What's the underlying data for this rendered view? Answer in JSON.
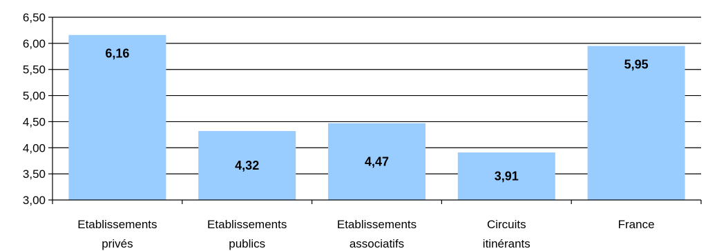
{
  "chart_data": {
    "type": "bar",
    "categories": [
      [
        "Etablissements",
        "privés"
      ],
      [
        "Etablissements",
        "publics"
      ],
      [
        "Etablissements",
        "associatifs"
      ],
      [
        "Circuits",
        "itinérants"
      ],
      [
        "France"
      ]
    ],
    "values": [
      6.16,
      4.32,
      4.47,
      3.91,
      5.95
    ],
    "value_labels": [
      "6,16",
      "4,32",
      "4,47",
      "3,91",
      "5,95"
    ],
    "ylim": [
      3.0,
      6.5
    ],
    "yticks": [
      3.0,
      3.5,
      4.0,
      4.5,
      5.0,
      5.5,
      6.0,
      6.5
    ],
    "ytick_labels": [
      "3,00",
      "3,50",
      "4,00",
      "4,50",
      "5,00",
      "5,50",
      "6,00",
      "6,50"
    ],
    "grid": true,
    "bar_color": "#99CCFF",
    "title": "",
    "xlabel": "",
    "ylabel": ""
  }
}
